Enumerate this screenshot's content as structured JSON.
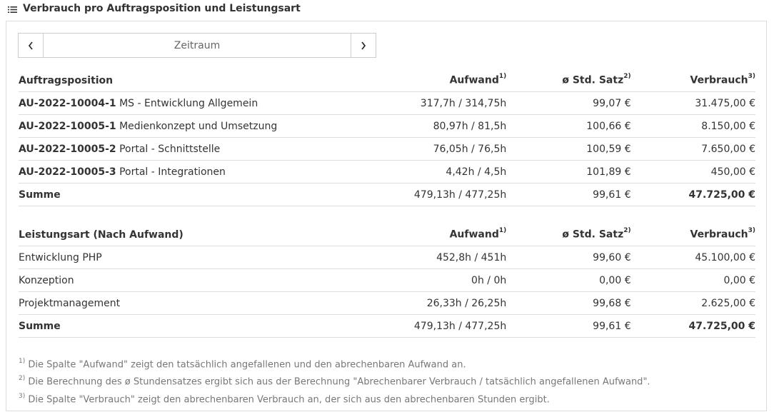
{
  "header": {
    "title": "Verbrauch pro Auftragsposition und Leistungsart"
  },
  "pager": {
    "label": "Zeitraum",
    "prev": "‹",
    "next": "›"
  },
  "table1": {
    "headers": [
      "Auftragsposition",
      "Aufwand",
      "ø Std. Satz",
      "Verbrauch"
    ],
    "header_marks": [
      "1)",
      "2)",
      "3)"
    ],
    "rows": [
      {
        "code": "AU-2022-10004-1",
        "name": "MS - Entwicklung Allgemein",
        "aufwand": "317,7h / 314,75h",
        "satz": "99,07 €",
        "verbrauch": "31.475,00 €"
      },
      {
        "code": "AU-2022-10005-1",
        "name": "Medienkonzept und Umsetzung",
        "aufwand": "80,97h / 81,5h",
        "satz": "100,66 €",
        "verbrauch": "8.150,00 €"
      },
      {
        "code": "AU-2022-10005-2",
        "name": "Portal - Schnittstelle",
        "aufwand": "76,05h / 76,5h",
        "satz": "100,59 €",
        "verbrauch": "7.650,00 €"
      },
      {
        "code": "AU-2022-10005-3",
        "name": "Portal - Integrationen",
        "aufwand": "4,42h / 4,5h",
        "satz": "101,89 €",
        "verbrauch": "450,00 €"
      }
    ],
    "sum": {
      "label": "Summe",
      "aufwand": "479,13h / 477,25h",
      "satz": "99,61 €",
      "verbrauch": "47.725,00 €"
    }
  },
  "table2": {
    "headers": [
      "Leistungsart (Nach Aufwand)",
      "Aufwand",
      "ø Std. Satz",
      "Verbrauch"
    ],
    "header_marks": [
      "1)",
      "2)",
      "3)"
    ],
    "rows": [
      {
        "name": "Entwicklung PHP",
        "aufwand": "452,8h / 451h",
        "satz": "99,60 €",
        "verbrauch": "45.100,00 €"
      },
      {
        "name": "Konzeption",
        "aufwand": "0h / 0h",
        "satz": "0,00 €",
        "verbrauch": "0,00 €"
      },
      {
        "name": "Projektmanagement",
        "aufwand": "26,33h / 26,25h",
        "satz": "99,68 €",
        "verbrauch": "2.625,00 €"
      }
    ],
    "sum": {
      "label": "Summe",
      "aufwand": "479,13h / 477,25h",
      "satz": "99,61 €",
      "verbrauch": "47.725,00 €"
    }
  },
  "footnotes": [
    {
      "mark": "1)",
      "text": "Die Spalte \"Aufwand\" zeigt den tatsächlich angefallenen und den abrechenbaren Aufwand an."
    },
    {
      "mark": "2)",
      "text": "Die Berechnung des ø Stundensatzes ergibt sich aus der Berechnung \"Abrechenbarer Verbrauch / tatsächlich angefallenen Aufwand\"."
    },
    {
      "mark": "3)",
      "text": "Die Spalte \"Verbrauch\" zeigt den abrechenbaren Verbrauch an, der sich aus den abrechenbaren Stunden ergibt."
    }
  ],
  "icons": {
    "header": "list-icon",
    "prev": "chevron-left-icon",
    "next": "chevron-right-icon"
  }
}
